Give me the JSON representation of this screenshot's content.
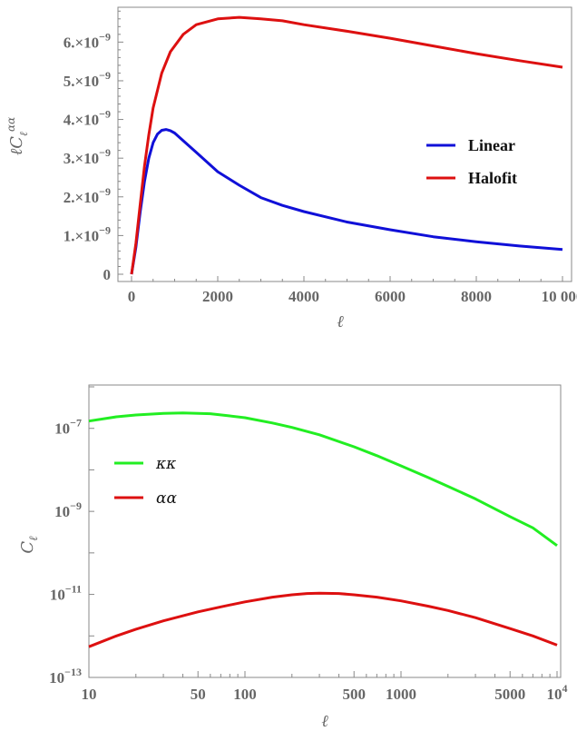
{
  "chart_data": [
    {
      "type": "line",
      "ylabel": "ℓC_ℓ^{αα}",
      "xlabel": "ℓ",
      "xlim": [
        0,
        10000
      ],
      "ylim": [
        0,
        6.9e-09
      ],
      "x_ticks": [
        {
          "value": 0,
          "label": "0"
        },
        {
          "value": 2000,
          "label": "2000"
        },
        {
          "value": 4000,
          "label": "4000"
        },
        {
          "value": 6000,
          "label": "6000"
        },
        {
          "value": 8000,
          "label": "8000"
        },
        {
          "value": 10000,
          "label": "10 000"
        }
      ],
      "y_ticks": [
        {
          "value": 0,
          "mant": "0",
          "exp": ""
        },
        {
          "value": 1e-09,
          "mant": "1.×10",
          "exp": "−9"
        },
        {
          "value": 2e-09,
          "mant": "2.×10",
          "exp": "−9"
        },
        {
          "value": 3e-09,
          "mant": "3.×10",
          "exp": "−9"
        },
        {
          "value": 4e-09,
          "mant": "4.×10",
          "exp": "−9"
        },
        {
          "value": 5e-09,
          "mant": "5.×10",
          "exp": "−9"
        },
        {
          "value": 6e-09,
          "mant": "6.×10",
          "exp": "−9"
        }
      ],
      "legend_position": "right-middle",
      "series": [
        {
          "name": "Linear",
          "color": "#1010d8",
          "x": [
            0,
            100,
            200,
            300,
            400,
            500,
            600,
            700,
            800,
            900,
            1000,
            1200,
            1500,
            2000,
            2500,
            3000,
            3500,
            4000,
            5000,
            6000,
            7000,
            8000,
            9000,
            10000
          ],
          "y": [
            0,
            7e-10,
            1.6e-09,
            2.4e-09,
            3e-09,
            3.4e-09,
            3.62e-09,
            3.72e-09,
            3.74e-09,
            3.71e-09,
            3.65e-09,
            3.45e-09,
            3.15e-09,
            2.65e-09,
            2.3e-09,
            1.98e-09,
            1.78e-09,
            1.62e-09,
            1.35e-09,
            1.15e-09,
            9.7e-10,
            8.4e-10,
            7.3e-10,
            6.4e-10
          ]
        },
        {
          "name": "Halofit",
          "color": "#dd1010",
          "x": [
            0,
            100,
            200,
            300,
            400,
            500,
            700,
            900,
            1200,
            1500,
            2000,
            2500,
            3000,
            3500,
            4000,
            5000,
            6000,
            7000,
            8000,
            9000,
            10000
          ],
          "y": [
            0,
            8e-10,
            1.8e-09,
            2.8e-09,
            3.6e-09,
            4.3e-09,
            5.2e-09,
            5.75e-09,
            6.2e-09,
            6.45e-09,
            6.6e-09,
            6.64e-09,
            6.6e-09,
            6.55e-09,
            6.45e-09,
            6.28e-09,
            6.1e-09,
            5.9e-09,
            5.7e-09,
            5.52e-09,
            5.35e-09
          ]
        }
      ]
    },
    {
      "type": "line",
      "ylabel": "C_ℓ",
      "xlabel": "ℓ",
      "xscale": "log",
      "yscale": "log",
      "xlim": [
        10,
        10000
      ],
      "ylim": [
        1e-13,
        1e-06
      ],
      "x_ticks": [
        {
          "value": 10,
          "mant": "10",
          "exp": ""
        },
        {
          "value": 50,
          "mant": "50",
          "exp": ""
        },
        {
          "value": 100,
          "mant": "100",
          "exp": ""
        },
        {
          "value": 500,
          "mant": "500",
          "exp": ""
        },
        {
          "value": 1000,
          "mant": "1000",
          "exp": ""
        },
        {
          "value": 5000,
          "mant": "5000",
          "exp": ""
        },
        {
          "value": 10000,
          "mant": "10",
          "exp": "4"
        }
      ],
      "y_ticks": [
        {
          "value": 1e-07,
          "mant": "10",
          "exp": "−7"
        },
        {
          "value": 1e-09,
          "mant": "10",
          "exp": "−9"
        },
        {
          "value": 1e-11,
          "mant": "10",
          "exp": "−11"
        },
        {
          "value": 1e-13,
          "mant": "10",
          "exp": "−13"
        }
      ],
      "legend_position": "left-middle",
      "series": [
        {
          "name": "κκ",
          "color": "#22ee22",
          "x": [
            10,
            15,
            20,
            30,
            40,
            60,
            80,
            100,
            150,
            200,
            300,
            500,
            700,
            1000,
            1500,
            2000,
            3000,
            5000,
            7000,
            10000
          ],
          "y": [
            1.5e-07,
            1.9e-07,
            2.1e-07,
            2.3e-07,
            2.35e-07,
            2.25e-07,
            2e-07,
            1.8e-07,
            1.35e-07,
            1.05e-07,
            7e-08,
            3.6e-08,
            2.2e-08,
            1.25e-08,
            6.5e-09,
            4e-09,
            2e-09,
            7.5e-10,
            4e-10,
            1.5e-10
          ]
        },
        {
          "name": "αα",
          "color": "#dd1010",
          "x": [
            10,
            15,
            20,
            30,
            50,
            70,
            100,
            150,
            200,
            250,
            300,
            400,
            500,
            700,
            1000,
            1500,
            2000,
            3000,
            5000,
            7000,
            10000
          ],
          "y": [
            5.5e-13,
            1e-12,
            1.45e-12,
            2.3e-12,
            3.8e-12,
            5e-12,
            6.6e-12,
            8.6e-12,
            9.8e-12,
            1.05e-11,
            1.07e-11,
            1.05e-11,
            9.8e-12,
            8.6e-12,
            7e-12,
            5.2e-12,
            4.1e-12,
            2.75e-12,
            1.5e-12,
            1e-12,
            6e-13
          ]
        }
      ]
    }
  ]
}
